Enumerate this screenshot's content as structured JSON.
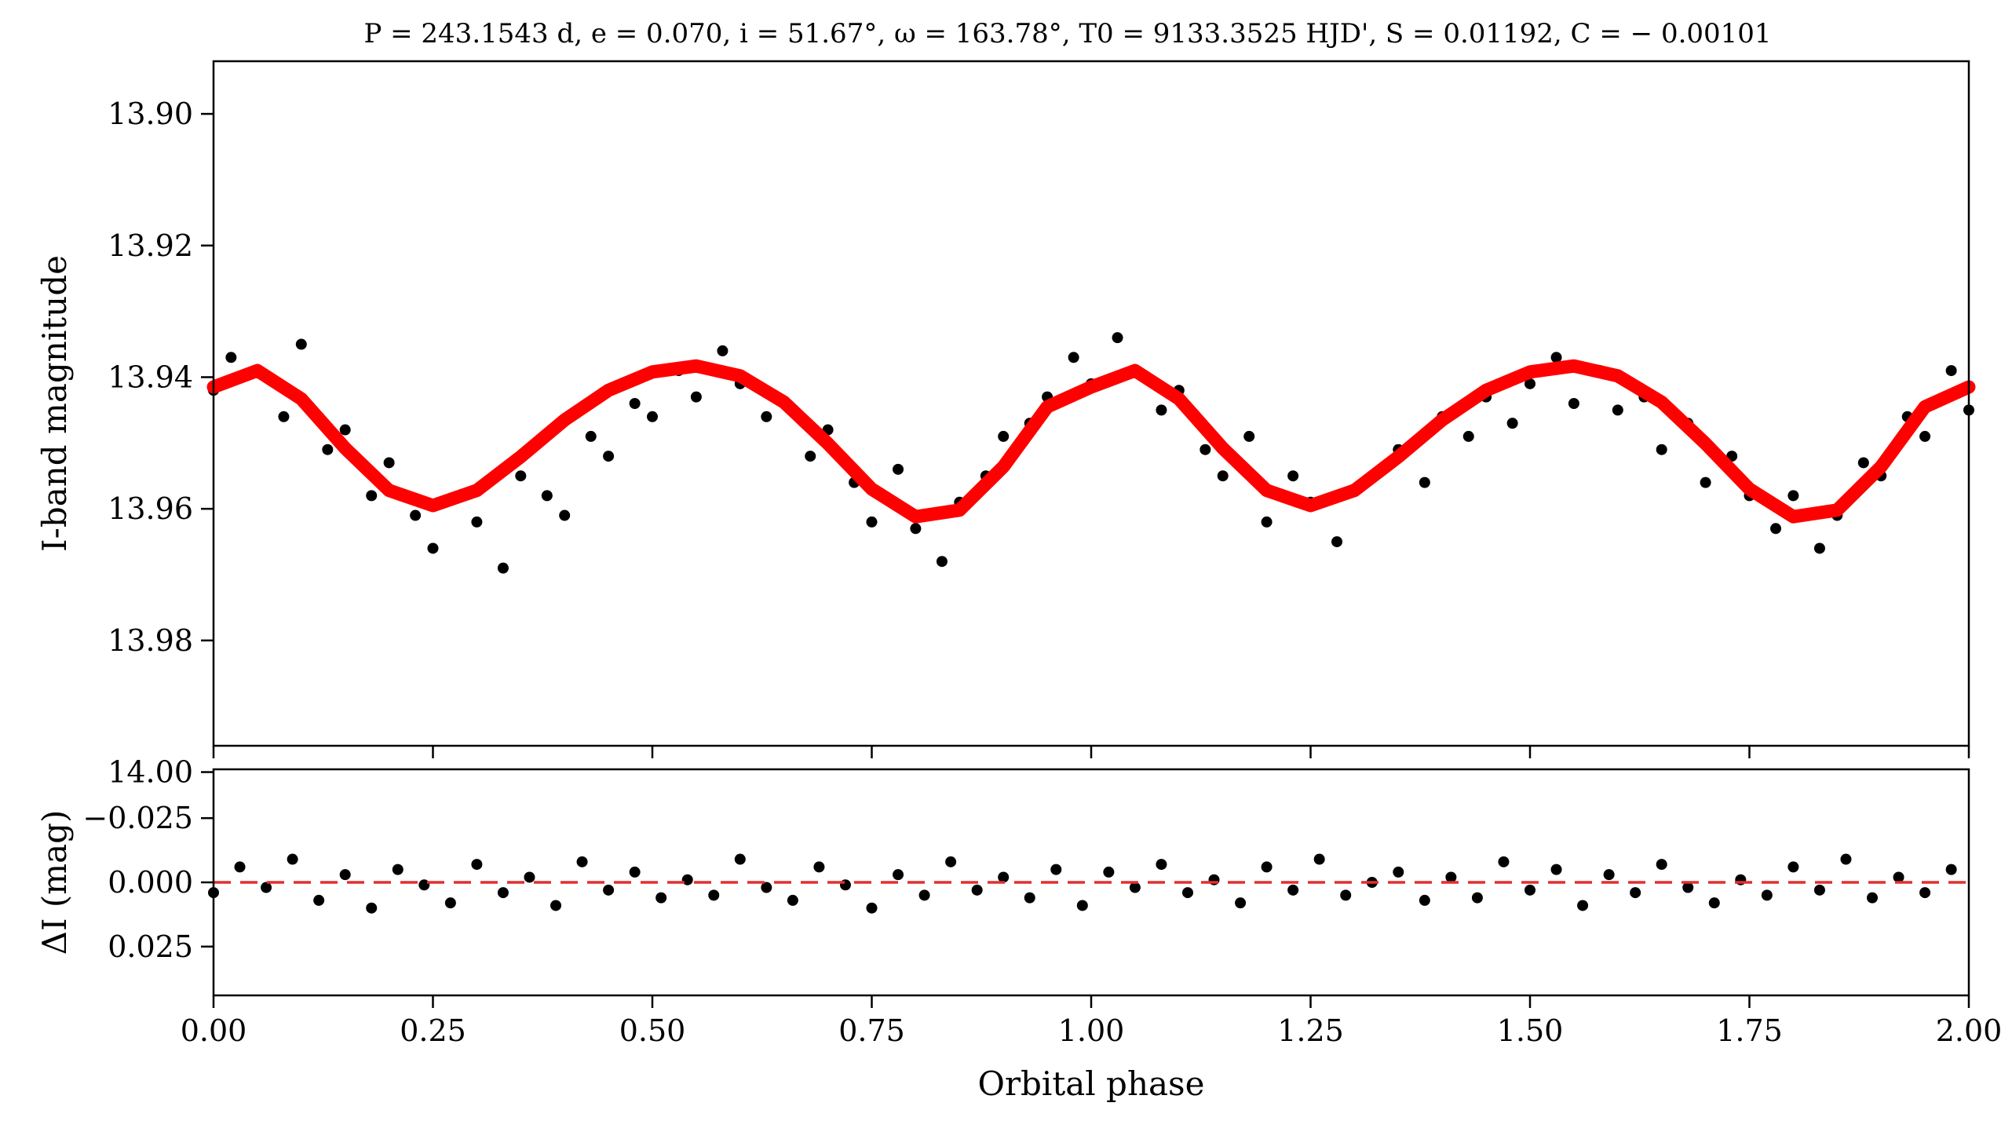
{
  "chart_data": [
    {
      "type": "scatter",
      "panel": "top",
      "title": "P = 243.1543 d, e = 0.070, i = 51.67°, ω = 163.78°, T0 = 9133.3525 HJD', S = 0.01192, C = − 0.00101",
      "xlabel": "",
      "ylabel": "I-band magnitude",
      "xlim": [
        0.0,
        2.0
      ],
      "ylim": [
        13.996,
        13.892
      ],
      "y_inverted": true,
      "yticks": [
        13.9,
        13.92,
        13.94,
        13.96,
        13.98,
        14.0
      ],
      "ytick_labels": [
        "13.90",
        "13.92",
        "13.94",
        "13.96",
        "13.98",
        "14.00"
      ],
      "xticks": [
        0.0,
        0.25,
        0.5,
        0.75,
        1.0,
        1.25,
        1.5,
        1.75,
        2.0
      ],
      "series": [
        {
          "kind": "points",
          "color": "#000000",
          "x": [
            0.0,
            0.02,
            0.05,
            0.08,
            0.1,
            0.13,
            0.15,
            0.18,
            0.2,
            0.23,
            0.25,
            0.28,
            0.3,
            0.33,
            0.35,
            0.38,
            0.4,
            0.43,
            0.45,
            0.48,
            0.5,
            0.53,
            0.55,
            0.58,
            0.6,
            0.63,
            0.65,
            0.68,
            0.7,
            0.73,
            0.75,
            0.78,
            0.8,
            0.83,
            0.85,
            0.88,
            0.9,
            0.93,
            0.95,
            0.98,
            1.0,
            1.03,
            1.05,
            1.08,
            1.1,
            1.13,
            1.15,
            1.18,
            1.2,
            1.23,
            1.25,
            1.28,
            1.3,
            1.33,
            1.35,
            1.38,
            1.4,
            1.43,
            1.45,
            1.48,
            1.5,
            1.53,
            1.55,
            1.58,
            1.6,
            1.63,
            1.65,
            1.68,
            1.7,
            1.73,
            1.75,
            1.78,
            1.8,
            1.83,
            1.85,
            1.88,
            1.9,
            1.93,
            1.95,
            1.98,
            2.0
          ],
          "y": [
            13.942,
            13.937,
            13.939,
            13.946,
            13.935,
            13.951,
            13.948,
            13.958,
            13.953,
            13.961,
            13.966,
            13.958,
            13.962,
            13.969,
            13.955,
            13.958,
            13.961,
            13.949,
            13.952,
            13.944,
            13.946,
            13.939,
            13.943,
            13.936,
            13.941,
            13.946,
            13.944,
            13.952,
            13.948,
            13.956,
            13.962,
            13.954,
            13.963,
            13.968,
            13.959,
            13.955,
            13.949,
            13.947,
            13.943,
            13.937,
            13.941,
            13.934,
            13.939,
            13.945,
            13.942,
            13.951,
            13.955,
            13.949,
            13.962,
            13.955,
            13.959,
            13.965,
            13.957,
            13.954,
            13.951,
            13.956,
            13.946,
            13.949,
            13.943,
            13.947,
            13.941,
            13.937,
            13.944,
            13.939,
            13.945,
            13.943,
            13.951,
            13.947,
            13.956,
            13.952,
            13.958,
            13.963,
            13.958,
            13.966,
            13.961,
            13.953,
            13.955,
            13.946,
            13.949,
            13.939,
            13.945
          ]
        },
        {
          "kind": "model",
          "color": "#ff0000",
          "x": [
            0.0,
            0.05,
            0.1,
            0.15,
            0.2,
            0.25,
            0.3,
            0.35,
            0.4,
            0.45,
            0.5,
            0.55,
            0.6,
            0.65,
            0.7,
            0.75,
            0.8,
            0.85,
            0.9,
            0.95,
            1.0,
            1.05,
            1.1,
            1.15,
            1.2,
            1.25,
            1.3,
            1.35,
            1.4,
            1.45,
            1.5,
            1.55,
            1.6,
            1.65,
            1.7,
            1.75,
            1.8,
            1.85,
            1.9,
            1.95,
            2.0
          ],
          "y": [
            13.9415,
            13.939,
            13.9433,
            13.9508,
            13.9572,
            13.9595,
            13.9572,
            13.9521,
            13.9465,
            13.942,
            13.9392,
            13.9383,
            13.9398,
            13.9438,
            13.9501,
            13.957,
            13.9612,
            13.9602,
            13.9536,
            13.9445,
            13.9415,
            13.939,
            13.9433,
            13.9508,
            13.9572,
            13.9595,
            13.9572,
            13.9521,
            13.9465,
            13.942,
            13.9392,
            13.9383,
            13.9398,
            13.9438,
            13.9501,
            13.957,
            13.9612,
            13.9602,
            13.9536,
            13.9445,
            13.9415
          ]
        }
      ]
    },
    {
      "type": "scatter",
      "panel": "bottom",
      "xlabel": "Orbital phase",
      "ylabel": "ΔI (mag)",
      "xlim": [
        0.0,
        2.0
      ],
      "ylim": [
        0.044,
        -0.044
      ],
      "y_inverted": true,
      "yticks": [
        -0.025,
        0.0,
        0.025
      ],
      "ytick_labels": [
        "−0.025",
        "0.000",
        "0.025"
      ],
      "xticks": [
        0.0,
        0.25,
        0.5,
        0.75,
        1.0,
        1.25,
        1.5,
        1.75,
        2.0
      ],
      "xtick_labels": [
        "0.00",
        "0.25",
        "0.50",
        "0.75",
        "1.00",
        "1.25",
        "1.50",
        "1.75",
        "2.00"
      ],
      "series": [
        {
          "kind": "points",
          "color": "#000000",
          "x": [
            0.0,
            0.03,
            0.06,
            0.09,
            0.12,
            0.15,
            0.18,
            0.21,
            0.24,
            0.27,
            0.3,
            0.33,
            0.36,
            0.39,
            0.42,
            0.45,
            0.48,
            0.51,
            0.54,
            0.57,
            0.6,
            0.63,
            0.66,
            0.69,
            0.72,
            0.75,
            0.78,
            0.81,
            0.84,
            0.87,
            0.9,
            0.93,
            0.96,
            0.99,
            1.02,
            1.05,
            1.08,
            1.11,
            1.14,
            1.17,
            1.2,
            1.23,
            1.26,
            1.29,
            1.32,
            1.35,
            1.38,
            1.41,
            1.44,
            1.47,
            1.5,
            1.53,
            1.56,
            1.59,
            1.62,
            1.65,
            1.68,
            1.71,
            1.74,
            1.77,
            1.8,
            1.83,
            1.86,
            1.89,
            1.92,
            1.95,
            1.98
          ],
          "y": [
            0.004,
            -0.006,
            0.002,
            -0.009,
            0.007,
            -0.003,
            0.01,
            -0.005,
            0.001,
            0.008,
            -0.007,
            0.004,
            -0.002,
            0.009,
            -0.008,
            0.003,
            -0.004,
            0.006,
            -0.001,
            0.005,
            -0.009,
            0.002,
            0.007,
            -0.006,
            0.001,
            0.01,
            -0.003,
            0.005,
            -0.008,
            0.003,
            -0.002,
            0.006,
            -0.005,
            0.009,
            -0.004,
            0.002,
            -0.007,
            0.004,
            -0.001,
            0.008,
            -0.006,
            0.003,
            -0.009,
            0.005,
            0.0,
            -0.004,
            0.007,
            -0.002,
            0.006,
            -0.008,
            0.003,
            -0.005,
            0.009,
            -0.003,
            0.004,
            -0.007,
            0.002,
            0.008,
            -0.001,
            0.005,
            -0.006,
            0.003,
            -0.009,
            0.006,
            -0.002,
            0.004,
            -0.005
          ]
        },
        {
          "kind": "reference",
          "color": "#e03030",
          "y": 0.0,
          "style": "dashed"
        }
      ]
    }
  ],
  "colors": {
    "points": "#000000",
    "model": "#ff0000",
    "zero_line": "#e03030"
  }
}
